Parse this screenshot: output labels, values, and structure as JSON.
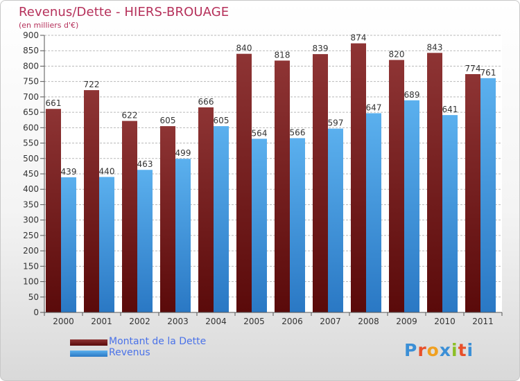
{
  "title": "Revenus/Dette - HIERS-BROUAGE",
  "subtitle": "(en milliers d'€)",
  "legend": [
    {
      "label": "Montant de la Dette",
      "color": "#7a1c1c"
    },
    {
      "label": "Revenus",
      "color": "#4aa0e6"
    }
  ],
  "logo": {
    "text": "Proxiti"
  },
  "chart_data": {
    "type": "bar",
    "title": "Revenus/Dette - HIERS-BROUAGE",
    "ylabel": "(en milliers d'€)",
    "xlabel": "",
    "ylim": [
      0,
      900
    ],
    "yticks": [
      0,
      50,
      100,
      150,
      200,
      250,
      300,
      350,
      400,
      450,
      500,
      550,
      600,
      650,
      700,
      750,
      800,
      850,
      900
    ],
    "grid": true,
    "categories": [
      "2000",
      "2001",
      "2002",
      "2003",
      "2004",
      "2005",
      "2006",
      "2007",
      "2008",
      "2009",
      "2010",
      "2011"
    ],
    "series": [
      {
        "name": "Montant de la Dette",
        "color": "#7a1c1c",
        "values": [
          661,
          722,
          622,
          605,
          666,
          840,
          818,
          839,
          874,
          820,
          843,
          774
        ]
      },
      {
        "name": "Revenus",
        "color": "#4aa0e6",
        "values": [
          439,
          440,
          463,
          499,
          605,
          564,
          566,
          597,
          647,
          689,
          641,
          761
        ]
      }
    ]
  }
}
